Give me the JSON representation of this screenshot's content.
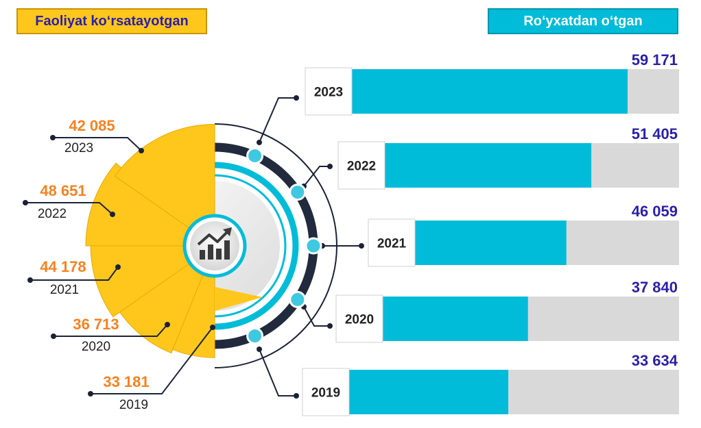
{
  "chart_data": {
    "type": "bar",
    "legend": {
      "active": "Faoliyat ko‘rsatayotgan",
      "registered": "Ro‘yxatdan o‘tgan"
    },
    "years": [
      "2023",
      "2022",
      "2021",
      "2020",
      "2019"
    ],
    "series": [
      {
        "name": "Faoliyat ko‘rsatayotgan",
        "color": "#ffc71c",
        "values": [
          42085,
          48651,
          44178,
          36713,
          33181
        ],
        "labels": [
          "42 085",
          "48 651",
          "44 178",
          "36 713",
          "33 181"
        ]
      },
      {
        "name": "Ro‘yxatdan o‘tgan",
        "color": "#00bcd8",
        "values": [
          59171,
          51405,
          46059,
          37840,
          33634
        ],
        "labels": [
          "59 171",
          "51 405",
          "46 059",
          "37 840",
          "33 634"
        ]
      }
    ]
  }
}
